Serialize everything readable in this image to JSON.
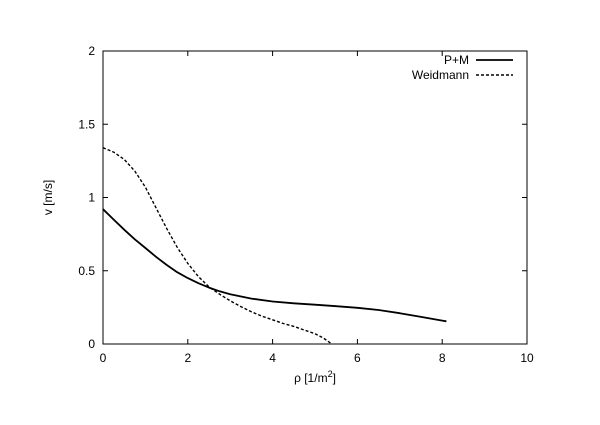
{
  "chart_data": {
    "type": "line",
    "xlabel": "ρ [1/m",
    "xlabel_sup": "2",
    "xlabel_close": "]",
    "ylabel": "v [m/s]",
    "xlim": [
      0,
      10
    ],
    "ylim": [
      0,
      2
    ],
    "xticks": [
      0,
      2,
      4,
      6,
      8,
      10
    ],
    "yticks": [
      0,
      0.5,
      1,
      1.5,
      2
    ],
    "xtick_labels": [
      "0",
      "2",
      "4",
      "6",
      "8",
      "10"
    ],
    "ytick_labels": [
      "0",
      "0.5",
      "1",
      "1.5",
      "2"
    ],
    "grid": false,
    "legend_position": "top-right",
    "series": [
      {
        "name": "P+M",
        "style": "solid",
        "color": "#000000",
        "x": [
          0,
          0.25,
          0.5,
          0.75,
          1.0,
          1.25,
          1.5,
          1.75,
          2.0,
          2.25,
          2.5,
          2.75,
          3.0,
          3.5,
          4.0,
          4.5,
          5.0,
          5.5,
          6.0,
          6.5,
          7.0,
          7.5,
          8.0,
          8.1
        ],
        "y": [
          0.92,
          0.85,
          0.78,
          0.715,
          0.655,
          0.595,
          0.54,
          0.49,
          0.45,
          0.415,
          0.385,
          0.36,
          0.34,
          0.31,
          0.29,
          0.278,
          0.268,
          0.258,
          0.247,
          0.232,
          0.21,
          0.185,
          0.16,
          0.155
        ]
      },
      {
        "name": "Weidmann",
        "style": "dashed",
        "color": "#000000",
        "x": [
          0,
          0.25,
          0.5,
          0.75,
          1.0,
          1.25,
          1.5,
          1.75,
          2.0,
          2.25,
          2.5,
          2.75,
          3.0,
          3.25,
          3.5,
          3.75,
          4.0,
          4.25,
          4.5,
          4.75,
          5.0,
          5.2,
          5.3,
          5.4
        ],
        "y": [
          1.34,
          1.31,
          1.26,
          1.18,
          1.07,
          0.93,
          0.79,
          0.66,
          0.55,
          0.46,
          0.39,
          0.34,
          0.295,
          0.255,
          0.22,
          0.19,
          0.165,
          0.14,
          0.12,
          0.095,
          0.07,
          0.04,
          0.02,
          0.0
        ]
      }
    ]
  }
}
